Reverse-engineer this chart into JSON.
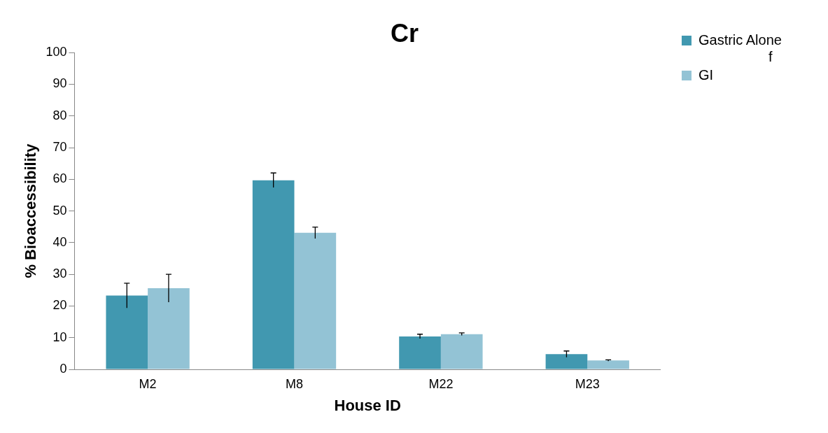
{
  "chart_data": {
    "type": "bar",
    "title": "Cr",
    "xlabel": "House ID",
    "ylabel": "% Bioaccessibility",
    "categories": [
      "M2",
      "M8",
      "M22",
      "M23"
    ],
    "series": [
      {
        "name": "Gastric Alone",
        "color": "#4198b0",
        "values": [
          23.3,
          59.7,
          10.4,
          4.8
        ],
        "errors": [
          3.9,
          2.3,
          0.7,
          1.0
        ]
      },
      {
        "name": "GI",
        "color": "#93c3d5",
        "values": [
          25.6,
          43.1,
          11.1,
          2.8
        ],
        "errors": [
          4.4,
          1.8,
          0.4,
          0.2
        ]
      }
    ],
    "ylim": [
      0,
      100
    ],
    "yticks": [
      0,
      10,
      20,
      30,
      40,
      50,
      60,
      70,
      80,
      90,
      100
    ],
    "grid": false,
    "legend": "right",
    "annotations": [
      "f"
    ]
  }
}
